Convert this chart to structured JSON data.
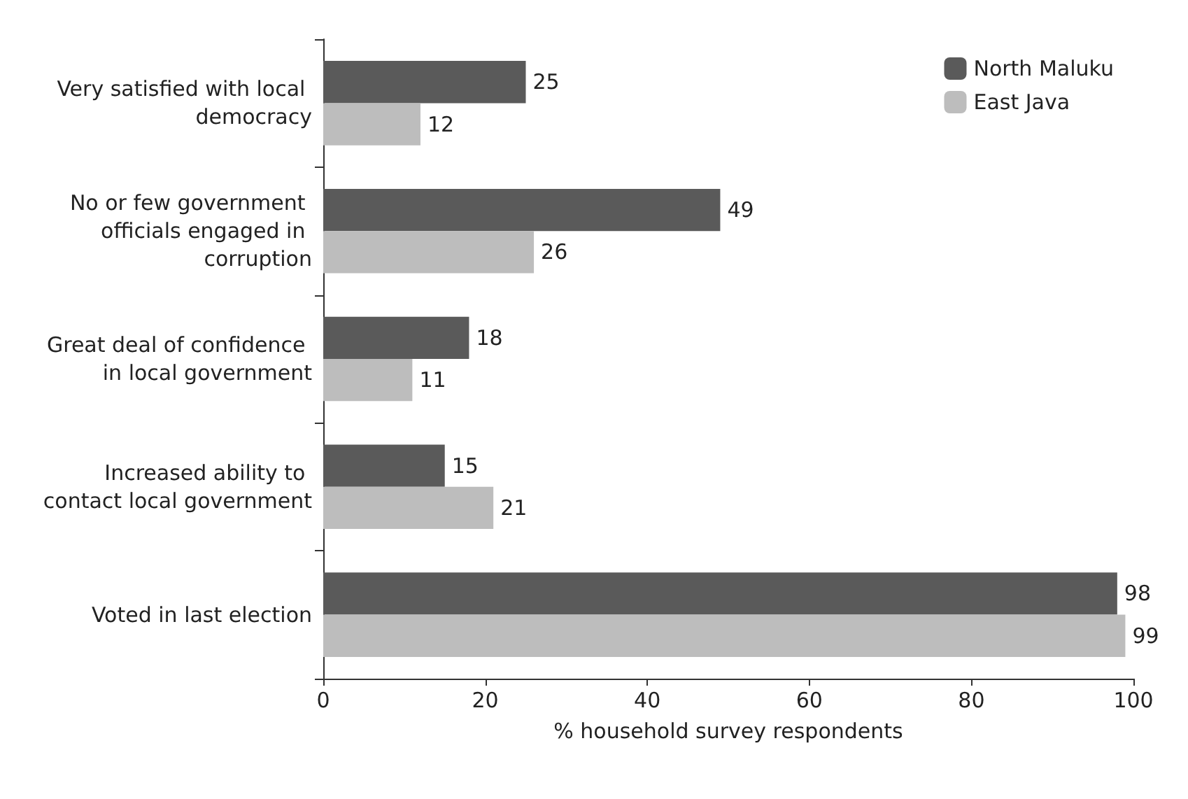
{
  "chart_data": {
    "type": "bar",
    "orientation": "horizontal",
    "xlabel": "% household survey respondents",
    "categories": [
      "Very satisfied with local democracy",
      "No or few government officials engaged in corruption",
      "Great deal of confidence in local government",
      "Increased ability to contact local government",
      "Voted in last election"
    ],
    "series": [
      {
        "name": "North Maluku",
        "color": "#5a5a5a",
        "values": [
          25,
          49,
          18,
          15,
          98
        ]
      },
      {
        "name": "East Java",
        "color": "#bdbdbd",
        "values": [
          12,
          26,
          11,
          21,
          99
        ]
      }
    ],
    "xlim": [
      0,
      100
    ],
    "xticks": [
      0,
      20,
      40,
      60,
      80,
      100
    ],
    "grid": false,
    "legend": "top right",
    "data_labels": true
  }
}
